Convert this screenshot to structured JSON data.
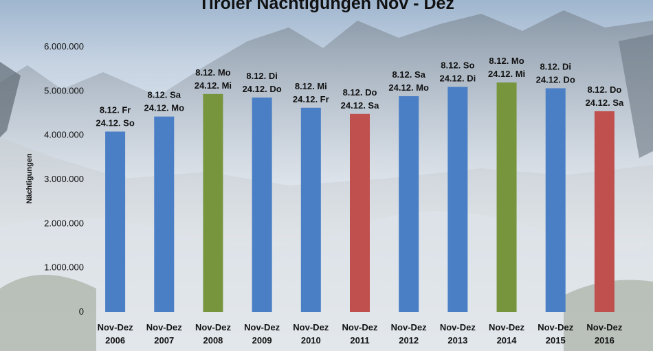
{
  "chart_data": {
    "type": "bar",
    "title": "Tiroler Nächtigungen Nov - Dez",
    "ylabel": "Nächtigungen",
    "xlabel": "",
    "ylim": [
      0,
      6000000
    ],
    "yticks": [
      "0",
      "1.000.000",
      "2.000.000",
      "3.000.000",
      "4.000.000",
      "5.000.000",
      "6.000.000"
    ],
    "grid": false,
    "legend": "none",
    "colors": {
      "blue": "#4a7fc6",
      "green": "#77953d",
      "red": "#c0504d"
    },
    "categories": [
      [
        "Nov-Dez",
        "2006"
      ],
      [
        "Nov-Dez",
        "2007"
      ],
      [
        "Nov-Dez",
        "2008"
      ],
      [
        "Nov-Dez",
        "2009"
      ],
      [
        "Nov-Dez",
        "2010"
      ],
      [
        "Nov-Dez",
        "2011"
      ],
      [
        "Nov-Dez",
        "2012"
      ],
      [
        "Nov-Dez",
        "2013"
      ],
      [
        "Nov-Dez",
        "2014"
      ],
      [
        "Nov-Dez",
        "2015"
      ],
      [
        "Nov-Dez",
        "2016"
      ]
    ],
    "values": [
      4080000,
      4420000,
      4930000,
      4850000,
      4620000,
      4480000,
      4880000,
      5090000,
      5190000,
      5060000,
      4540000
    ],
    "bar_colors": [
      "blue",
      "blue",
      "green",
      "blue",
      "blue",
      "red",
      "blue",
      "blue",
      "green",
      "blue",
      "red"
    ],
    "data_labels": [
      [
        "8.12. Fr",
        "24.12. So"
      ],
      [
        "8.12. Sa",
        "24.12. Mo"
      ],
      [
        "8.12. Mo",
        "24.12. Mi"
      ],
      [
        "8.12. Di",
        "24.12. Do"
      ],
      [
        "8.12. Mi",
        "24.12. Fr"
      ],
      [
        "8.12. Do",
        "24.12. Sa"
      ],
      [
        "8.12. Sa",
        "24.12. Mo"
      ],
      [
        "8.12. So",
        "24.12. Di"
      ],
      [
        "8.12. Mo",
        "24.12. Mi"
      ],
      [
        "8.12. Di",
        "24.12. Do"
      ],
      [
        "8.12. Do",
        "24.12. Sa"
      ]
    ]
  }
}
